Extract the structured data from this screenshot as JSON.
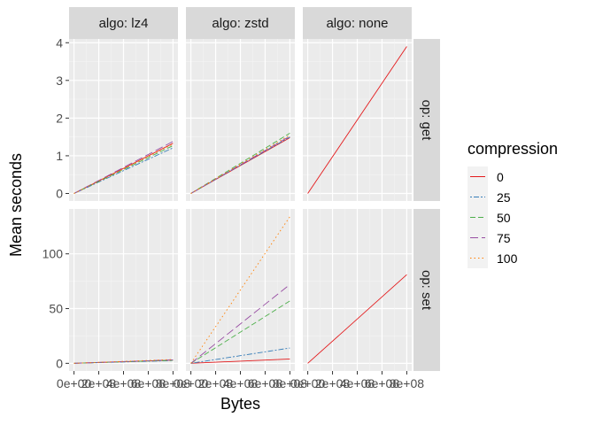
{
  "chart_data": {
    "type": "line",
    "xlabel": "Bytes",
    "ylabel": "Mean seconds",
    "x_tick_labels": [
      "0e+00",
      "2e+08",
      "4e+08",
      "6e+08",
      "8e+08"
    ],
    "x_ticks": [
      0,
      200000000,
      400000000,
      600000000,
      800000000
    ],
    "xlim": [
      -40000000,
      840000000
    ],
    "col_facets": [
      "algo: lz4",
      "algo: zstd",
      "algo: none"
    ],
    "row_facets": [
      {
        "label": "op: get",
        "ylim": [
          -0.2,
          4.1
        ],
        "y_ticks": [
          0,
          1,
          2,
          3,
          4
        ],
        "y_tick_labels": [
          "0",
          "1",
          "2",
          "3",
          "4"
        ]
      },
      {
        "label": "op: set",
        "ylim": [
          -7,
          141
        ],
        "y_ticks": [
          0,
          50,
          100
        ],
        "y_tick_labels": [
          "0",
          "50",
          "100"
        ]
      }
    ],
    "legend": {
      "title": "compression",
      "entries": [
        {
          "label": "0",
          "color": "#e41a1c",
          "dash": "solid"
        },
        {
          "label": "25",
          "color": "#377eb8",
          "dash": "dotted-dash"
        },
        {
          "label": "50",
          "color": "#4daf4a",
          "dash": "dashed"
        },
        {
          "label": "75",
          "color": "#984ea3",
          "dash": "long-dash"
        },
        {
          "label": "100",
          "color": "#ff7f00",
          "dash": "dotted"
        }
      ]
    },
    "panels": [
      {
        "row": 0,
        "col": 0,
        "series": [
          {
            "name": "0",
            "points": [
              [
                0,
                0
              ],
              [
                800000000,
                1.33
              ]
            ]
          },
          {
            "name": "25",
            "points": [
              [
                0,
                0
              ],
              [
                800000000,
                1.21
              ]
            ]
          },
          {
            "name": "50",
            "points": [
              [
                0,
                0
              ],
              [
                800000000,
                1.27
              ]
            ]
          },
          {
            "name": "75",
            "points": [
              [
                0,
                0
              ],
              [
                800000000,
                1.38
              ]
            ]
          },
          {
            "name": "100",
            "points": [
              [
                0,
                0
              ],
              [
                800000000,
                1.31
              ]
            ]
          }
        ]
      },
      {
        "row": 0,
        "col": 1,
        "series": [
          {
            "name": "0",
            "points": [
              [
                0,
                0
              ],
              [
                800000000,
                1.48
              ]
            ]
          },
          {
            "name": "25",
            "points": [
              [
                0,
                0
              ],
              [
                800000000,
                1.5
              ]
            ]
          },
          {
            "name": "50",
            "points": [
              [
                0,
                0
              ],
              [
                800000000,
                1.6
              ]
            ]
          },
          {
            "name": "75",
            "points": [
              [
                0,
                0
              ],
              [
                800000000,
                1.52
              ]
            ]
          },
          {
            "name": "100",
            "points": [
              [
                0,
                0
              ],
              [
                800000000,
                1.55
              ]
            ]
          }
        ]
      },
      {
        "row": 0,
        "col": 2,
        "series": [
          {
            "name": "0",
            "points": [
              [
                0,
                0
              ],
              [
                800000000,
                3.9
              ]
            ]
          }
        ]
      },
      {
        "row": 1,
        "col": 0,
        "series": [
          {
            "name": "0",
            "points": [
              [
                0,
                0
              ],
              [
                800000000,
                3
              ]
            ]
          },
          {
            "name": "25",
            "points": [
              [
                0,
                0
              ],
              [
                800000000,
                2.5
              ]
            ]
          },
          {
            "name": "50",
            "points": [
              [
                0,
                0
              ],
              [
                800000000,
                2.8
              ]
            ]
          },
          {
            "name": "75",
            "points": [
              [
                0,
                0
              ],
              [
                800000000,
                3.2
              ]
            ]
          },
          {
            "name": "100",
            "points": [
              [
                0,
                0
              ],
              [
                800000000,
                3.5
              ]
            ]
          }
        ]
      },
      {
        "row": 1,
        "col": 1,
        "series": [
          {
            "name": "0",
            "points": [
              [
                0,
                0
              ],
              [
                800000000,
                4
              ]
            ]
          },
          {
            "name": "25",
            "points": [
              [
                0,
                0
              ],
              [
                800000000,
                14
              ]
            ]
          },
          {
            "name": "50",
            "points": [
              [
                0,
                0
              ],
              [
                800000000,
                57
              ]
            ]
          },
          {
            "name": "75",
            "points": [
              [
                0,
                0
              ],
              [
                800000000,
                72
              ]
            ]
          },
          {
            "name": "100",
            "points": [
              [
                0,
                0
              ],
              [
                800000000,
                134
              ]
            ]
          }
        ]
      },
      {
        "row": 1,
        "col": 2,
        "series": [
          {
            "name": "0",
            "points": [
              [
                0,
                0
              ],
              [
                800000000,
                81
              ]
            ]
          }
        ]
      }
    ],
    "grid": true,
    "legend_position": "right",
    "background": "#ebebeb"
  }
}
